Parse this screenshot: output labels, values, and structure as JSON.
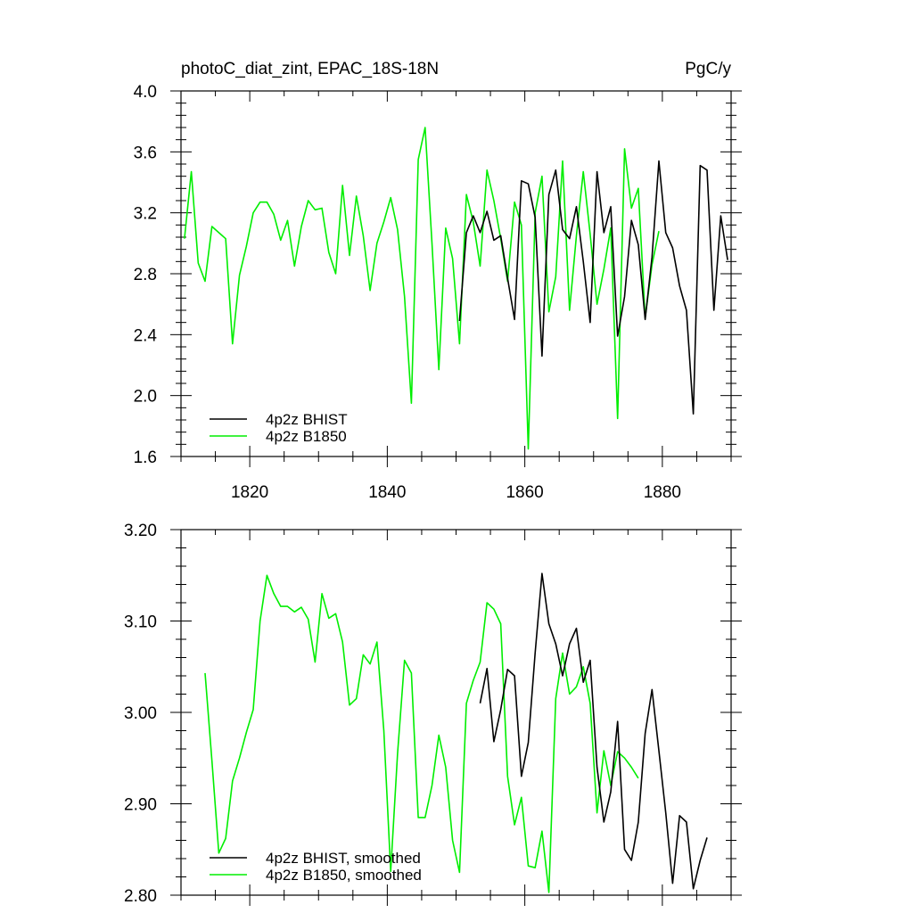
{
  "header": {
    "title": "photoC_diat_zint, EPAC_18S-18N",
    "units": "PgC/y"
  },
  "colors": {
    "bhist": "#000000",
    "b1850": "#00ee00",
    "axis": "#000000"
  },
  "chart_data": [
    {
      "type": "line",
      "title": "photoC_diat_zint, EPAC_18S-18N",
      "units": "PgC/y",
      "xlim": [
        1810,
        1890
      ],
      "ylim": [
        1.6,
        4.0
      ],
      "x_ticks": [
        1820,
        1840,
        1860,
        1880
      ],
      "x_tick_labels": [
        "1820",
        "1840",
        "1860",
        "1880"
      ],
      "y_ticks": [
        1.6,
        2.0,
        2.4,
        2.8,
        3.2,
        3.6,
        4.0
      ],
      "y_tick_labels": [
        "1.6",
        "2.0",
        "2.4",
        "2.8",
        "3.2",
        "3.6",
        "4.0"
      ],
      "legend_position": "bottom-left",
      "series": [
        {
          "name": "4p2z BHIST",
          "color": "#000000",
          "x": [
            1850.5,
            1851.5,
            1852.5,
            1853.5,
            1854.5,
            1855.5,
            1856.5,
            1857.5,
            1858.5,
            1859.5,
            1860.5,
            1861.5,
            1862.5,
            1863.5,
            1864.5,
            1865.5,
            1866.5,
            1867.5,
            1868.5,
            1869.5,
            1870.5,
            1871.5,
            1872.5,
            1873.5,
            1874.5,
            1875.5,
            1876.5,
            1877.5,
            1878.5,
            1879.5,
            1880.5,
            1881.5,
            1882.5,
            1883.5,
            1884.5,
            1885.5,
            1886.5,
            1887.5,
            1888.5,
            1889.5
          ],
          "y": [
            2.49,
            3.07,
            3.18,
            3.07,
            3.21,
            3.02,
            3.05,
            2.77,
            2.5,
            3.41,
            3.39,
            3.17,
            2.26,
            3.32,
            3.48,
            3.09,
            3.03,
            3.24,
            2.88,
            2.48,
            3.47,
            3.07,
            3.24,
            2.39,
            2.65,
            3.15,
            2.99,
            2.5,
            2.91,
            3.54,
            3.07,
            2.97,
            2.72,
            2.56,
            1.88,
            3.51,
            3.48,
            2.56,
            3.18,
            2.89
          ]
        },
        {
          "name": "4p2z B1850",
          "color": "#00ee00",
          "x": [
            1810.5,
            1811.5,
            1812.5,
            1813.5,
            1814.5,
            1815.5,
            1816.5,
            1817.5,
            1818.5,
            1819.5,
            1820.5,
            1821.5,
            1822.5,
            1823.5,
            1824.5,
            1825.5,
            1826.5,
            1827.5,
            1828.5,
            1829.5,
            1830.5,
            1831.5,
            1832.5,
            1833.5,
            1834.5,
            1835.5,
            1836.5,
            1837.5,
            1838.5,
            1839.5,
            1840.5,
            1841.5,
            1842.5,
            1843.5,
            1844.5,
            1845.5,
            1846.5,
            1847.5,
            1848.5,
            1849.5,
            1850.5,
            1851.5,
            1852.5,
            1853.5,
            1854.5,
            1855.5,
            1856.5,
            1857.5,
            1858.5,
            1859.5,
            1860.5,
            1861.5,
            1862.5,
            1863.5,
            1864.5,
            1865.5,
            1866.5,
            1867.5,
            1868.5,
            1869.5,
            1870.5,
            1871.5,
            1872.5,
            1873.5,
            1874.5,
            1875.5,
            1876.5,
            1877.5,
            1878.5,
            1879.5
          ],
          "y": [
            3.03,
            3.47,
            2.87,
            2.75,
            3.11,
            3.07,
            3.03,
            2.34,
            2.79,
            2.98,
            3.2,
            3.27,
            3.27,
            3.19,
            3.02,
            3.15,
            2.85,
            3.11,
            3.28,
            3.22,
            3.23,
            2.94,
            2.8,
            3.38,
            2.92,
            3.31,
            3.05,
            2.69,
            3.0,
            3.14,
            3.3,
            3.09,
            2.65,
            1.95,
            3.55,
            3.76,
            3.0,
            2.17,
            3.1,
            2.9,
            2.34,
            3.32,
            3.14,
            2.85,
            3.48,
            3.28,
            3.03,
            2.75,
            3.27,
            3.12,
            1.65,
            3.2,
            3.44,
            2.55,
            2.78,
            3.54,
            2.56,
            3.05,
            3.47,
            3.06,
            2.6,
            2.83,
            3.1,
            1.85,
            3.62,
            3.23,
            3.36,
            2.51,
            2.86,
            3.08
          ]
        }
      ]
    },
    {
      "type": "line",
      "xlim": [
        1810,
        1890
      ],
      "ylim": [
        2.8,
        3.2
      ],
      "y_ticks": [
        2.8,
        2.9,
        3.0,
        3.1,
        3.2
      ],
      "y_tick_labels": [
        "2.80",
        "2.90",
        "3.00",
        "3.10",
        "3.20"
      ],
      "legend_position": "bottom-left",
      "series": [
        {
          "name": "4p2z BHIST, smoothed",
          "color": "#000000",
          "x": [
            1853.5,
            1854.5,
            1855.5,
            1856.5,
            1857.5,
            1858.5,
            1859.5,
            1860.5,
            1861.5,
            1862.5,
            1863.5,
            1864.5,
            1865.5,
            1866.5,
            1867.5,
            1868.5,
            1869.5,
            1870.5,
            1871.5,
            1872.5,
            1873.5,
            1874.5,
            1875.5,
            1876.5,
            1877.5,
            1878.5,
            1879.5,
            1880.5,
            1881.5,
            1882.5,
            1883.5,
            1884.5,
            1885.5,
            1886.5
          ],
          "y": [
            3.01,
            3.048,
            2.968,
            3.003,
            3.047,
            3.04,
            2.93,
            2.967,
            3.065,
            3.152,
            3.097,
            3.075,
            3.04,
            3.075,
            3.092,
            3.033,
            3.057,
            2.94,
            2.88,
            2.913,
            2.99,
            2.85,
            2.838,
            2.88,
            2.977,
            3.025,
            2.958,
            2.89,
            2.813,
            2.887,
            2.88,
            2.807,
            2.838,
            2.863
          ]
        },
        {
          "name": "4p2z B1850, smoothed",
          "color": "#00ee00",
          "x": [
            1813.5,
            1814.5,
            1815.5,
            1816.5,
            1817.5,
            1818.5,
            1819.5,
            1820.5,
            1821.5,
            1822.5,
            1823.5,
            1824.5,
            1825.5,
            1826.5,
            1827.5,
            1828.5,
            1829.5,
            1830.5,
            1831.5,
            1832.5,
            1833.5,
            1834.5,
            1835.5,
            1836.5,
            1837.5,
            1838.5,
            1839.5,
            1840.5,
            1841.5,
            1842.5,
            1843.5,
            1844.5,
            1845.5,
            1846.5,
            1847.5,
            1848.5,
            1849.5,
            1850.5,
            1851.5,
            1852.5,
            1853.5,
            1854.5,
            1855.5,
            1856.5,
            1857.5,
            1858.5,
            1859.5,
            1860.5,
            1861.5,
            1862.5,
            1863.5,
            1864.5,
            1865.5,
            1866.5,
            1867.5,
            1868.5,
            1869.5,
            1870.5,
            1871.5,
            1872.5,
            1873.5,
            1874.5,
            1875.5,
            1876.5
          ],
          "y": [
            3.043,
            2.947,
            2.846,
            2.862,
            2.925,
            2.95,
            2.978,
            3.003,
            3.1,
            3.15,
            3.13,
            3.116,
            3.116,
            3.11,
            3.115,
            3.102,
            3.055,
            3.13,
            3.103,
            3.108,
            3.077,
            3.008,
            3.015,
            3.063,
            3.053,
            3.077,
            2.98,
            2.826,
            2.955,
            3.057,
            3.043,
            2.885,
            2.885,
            2.92,
            2.975,
            2.94,
            2.86,
            2.825,
            3.01,
            3.035,
            3.055,
            3.12,
            3.113,
            3.097,
            2.93,
            2.877,
            2.907,
            2.832,
            2.83,
            2.87,
            2.803,
            3.015,
            3.065,
            3.02,
            3.028,
            3.05,
            3.01,
            2.89,
            2.958,
            2.92,
            2.957,
            2.95,
            2.94,
            2.928
          ]
        }
      ]
    }
  ]
}
